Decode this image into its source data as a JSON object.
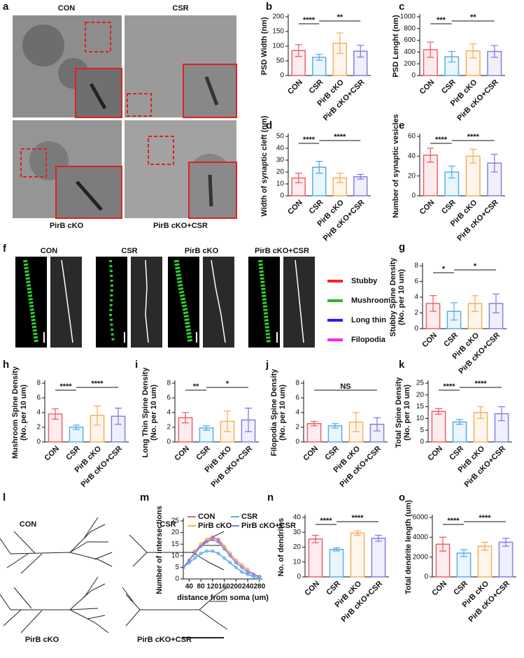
{
  "panel_a": {
    "letter": "a",
    "labels": [
      "CON",
      "CSR",
      "PirB cKO",
      "PirB cKO+CSR"
    ]
  },
  "panel_f": {
    "letter": "f",
    "labels": [
      "CON",
      "CSR",
      "PirB cKO",
      "PirB cKO+CSR"
    ],
    "legend": [
      {
        "name": "Stubby",
        "color": "#ff1f1f"
      },
      {
        "name": "Mushroom",
        "color": "#1fbf1f"
      },
      {
        "name": "Long thin",
        "color": "#1f1fff"
      },
      {
        "name": "Filopodia",
        "color": "#ff1fff"
      }
    ]
  },
  "panel_l": {
    "letter": "l",
    "labels": [
      "CON",
      "CSR",
      "PirB cKO",
      "PirB cKO+CSR"
    ]
  },
  "chart_data": [
    {
      "panel": "b",
      "type": "bar",
      "ylabel": "PSD Width (nm)",
      "categories": [
        "CON",
        "CSR",
        "PirB cKO",
        "PirB cKO+CSR"
      ],
      "colors": [
        "#f0606a",
        "#5aaee8",
        "#f5b060",
        "#8080e8"
      ],
      "values": [
        85,
        62,
        110,
        83
      ],
      "errors": [
        20,
        10,
        35,
        20
      ],
      "ylim": [
        0,
        200
      ],
      "yticks": [
        0,
        50,
        100,
        150,
        200
      ],
      "annotations": [
        {
          "text": "****",
          "from": "CON",
          "to": "CSR"
        },
        {
          "text": "**",
          "from": "CSR",
          "to": "PirB cKO+CSR"
        }
      ]
    },
    {
      "panel": "c",
      "type": "bar",
      "ylabel": "PSD Lenght (nm)",
      "categories": [
        "CON",
        "CSR",
        "PirB cKO",
        "PirB cKO+CSR"
      ],
      "colors": [
        "#f0606a",
        "#5aaee8",
        "#f5b060",
        "#8080e8"
      ],
      "values": [
        440,
        320,
        420,
        410
      ],
      "errors": [
        130,
        90,
        120,
        100
      ],
      "ylim": [
        0,
        1000
      ],
      "yticks": [
        0,
        200,
        400,
        600,
        800,
        1000
      ],
      "annotations": [
        {
          "text": "***",
          "from": "CON",
          "to": "CSR"
        },
        {
          "text": "**",
          "from": "CSR",
          "to": "PirB cKO+CSR"
        }
      ]
    },
    {
      "panel": "d",
      "type": "bar",
      "ylabel": "Width of synaptic cleft (nm)",
      "categories": [
        "CON",
        "CSR",
        "PirB cKO",
        "PirB cKO+CSR"
      ],
      "colors": [
        "#f0606a",
        "#5aaee8",
        "#f5b060",
        "#8080e8"
      ],
      "values": [
        15,
        24,
        15,
        16
      ],
      "errors": [
        4,
        5,
        4,
        2
      ],
      "ylim": [
        0,
        50
      ],
      "yticks": [
        0,
        10,
        20,
        30,
        40,
        50
      ],
      "annotations": [
        {
          "text": "****",
          "from": "CON",
          "to": "CSR"
        },
        {
          "text": "****",
          "from": "CSR",
          "to": "PirB cKO+CSR"
        }
      ]
    },
    {
      "panel": "e",
      "type": "bar",
      "ylabel": "Number of synaptic vesicles",
      "categories": [
        "CON",
        "CSR",
        "PirB cKO",
        "PirB cKO+CSR"
      ],
      "colors": [
        "#f0606a",
        "#5aaee8",
        "#f5b060",
        "#8080e8"
      ],
      "values": [
        41,
        24,
        40,
        33
      ],
      "errors": [
        7,
        6,
        7,
        9
      ],
      "ylim": [
        0,
        60
      ],
      "yticks": [
        0,
        20,
        40,
        60
      ],
      "annotations": [
        {
          "text": "****",
          "from": "CON",
          "to": "CSR"
        },
        {
          "text": "****",
          "from": "CSR",
          "to": "PirB cKO+CSR"
        }
      ]
    },
    {
      "panel": "g",
      "type": "bar",
      "ylabel": [
        "Stubby Spine Density",
        "(No. per 10 um)"
      ],
      "categories": [
        "CON",
        "CSR",
        "PirB cKO",
        "PirB cKO+CSR"
      ],
      "colors": [
        "#f0606a",
        "#5aaee8",
        "#f5b060",
        "#8080e8"
      ],
      "values": [
        3.2,
        2.2,
        3.2,
        3.2
      ],
      "errors": [
        1,
        1.1,
        1,
        1.2
      ],
      "ylim": [
        0,
        8
      ],
      "yticks": [
        0,
        2,
        4,
        6,
        8
      ],
      "annotations": [
        {
          "text": "*",
          "from": "CON",
          "to": "CSR"
        },
        {
          "text": "*",
          "from": "CSR",
          "to": "PirB cKO+CSR"
        }
      ]
    },
    {
      "panel": "h",
      "type": "bar",
      "ylabel": [
        "Mushroom Spine Density",
        "(No. per 10 um)"
      ],
      "categories": [
        "CON",
        "CSR",
        "PirB cKO",
        "PirB cKO+CSR"
      ],
      "colors": [
        "#f0606a",
        "#5aaee8",
        "#f5b060",
        "#8080e8"
      ],
      "values": [
        3.8,
        2.0,
        3.6,
        3.5
      ],
      "errors": [
        0.7,
        0.3,
        1.3,
        1.1
      ],
      "ylim": [
        0,
        8
      ],
      "yticks": [
        0,
        2,
        4,
        6,
        8
      ],
      "annotations": [
        {
          "text": "****",
          "from": "CON",
          "to": "CSR"
        },
        {
          "text": "****",
          "from": "CSR",
          "to": "PirB cKO+CSR"
        }
      ]
    },
    {
      "panel": "i",
      "type": "bar",
      "ylabel": [
        "Long Thin Spine Density",
        "(No. per 10 um)"
      ],
      "categories": [
        "CON",
        "CSR",
        "PirB cKO",
        "PirB cKO+CSR"
      ],
      "colors": [
        "#f0606a",
        "#5aaee8",
        "#f5b060",
        "#8080e8"
      ],
      "values": [
        3.3,
        1.9,
        2.8,
        3.0
      ],
      "errors": [
        0.7,
        0.3,
        1.4,
        1.6
      ],
      "ylim": [
        0,
        8
      ],
      "yticks": [
        0,
        2,
        4,
        6,
        8
      ],
      "annotations": [
        {
          "text": "**",
          "from": "CON",
          "to": "CSR"
        },
        {
          "text": "*",
          "from": "CSR",
          "to": "PirB cKO+CSR"
        }
      ]
    },
    {
      "panel": "j",
      "type": "bar",
      "ylabel": [
        "Filopodia Spine Density",
        "(No. per 10 um)"
      ],
      "categories": [
        "CON",
        "CSR",
        "PirB cKO",
        "PirB cKO+CSR"
      ],
      "colors": [
        "#f0606a",
        "#5aaee8",
        "#f5b060",
        "#8080e8"
      ],
      "values": [
        2.5,
        2.2,
        2.7,
        2.4
      ],
      "errors": [
        0.3,
        0.3,
        1.3,
        0.9
      ],
      "ylim": [
        0,
        8
      ],
      "yticks": [
        0,
        2,
        4,
        6,
        8
      ],
      "annotations": [
        {
          "text": "NS",
          "from": "CON",
          "to": "PirB cKO+CSR"
        }
      ]
    },
    {
      "panel": "k",
      "type": "bar",
      "ylabel": [
        "Total Spine Density",
        "(No. per 10 um)"
      ],
      "categories": [
        "CON",
        "CSR",
        "PirB cKO",
        "PirB cKO+CSR"
      ],
      "colors": [
        "#f0606a",
        "#5aaee8",
        "#f5b060",
        "#8080e8"
      ],
      "values": [
        13,
        8.5,
        12.5,
        12
      ],
      "errors": [
        1.2,
        1,
        2.5,
        3
      ],
      "ylim": [
        0,
        25
      ],
      "yticks": [
        0,
        5,
        10,
        15,
        20,
        25
      ],
      "annotations": [
        {
          "text": "****",
          "from": "CON",
          "to": "CSR"
        },
        {
          "text": "****",
          "from": "CSR",
          "to": "PirB cKO+CSR"
        }
      ]
    },
    {
      "panel": "m",
      "type": "line",
      "ylabel": "Number of intersections",
      "xlabel": "distance from soma (um)",
      "x": [
        20,
        40,
        60,
        80,
        100,
        120,
        140,
        160,
        180,
        200,
        220,
        240,
        260,
        280
      ],
      "series": [
        {
          "name": "CON",
          "color": "#f0606a",
          "values": [
            5,
            8,
            11,
            15,
            17,
            18,
            17,
            14,
            11,
            8,
            6,
            4,
            2,
            1
          ]
        },
        {
          "name": "CSR",
          "color": "#5aaee8",
          "values": [
            5,
            7,
            9,
            11,
            12,
            12,
            11,
            9,
            7,
            5,
            3,
            2,
            1,
            0.5
          ]
        },
        {
          "name": "PirB cKO",
          "color": "#f5b060",
          "values": [
            5,
            8,
            12,
            15,
            17,
            17,
            16,
            14,
            11,
            8,
            6,
            4,
            2,
            1
          ]
        },
        {
          "name": "PirB cKO+CSR",
          "color": "#8080e8",
          "values": [
            5,
            8,
            11,
            14,
            16,
            17,
            16,
            13,
            10,
            7,
            5,
            3,
            2,
            1
          ]
        }
      ],
      "xlim": [
        20,
        290
      ],
      "xticks": [
        40,
        80,
        120,
        160,
        200,
        240,
        280
      ],
      "ylim": [
        0,
        25
      ],
      "yticks": [
        0,
        5,
        10,
        15,
        20,
        25
      ]
    },
    {
      "panel": "n",
      "type": "bar",
      "ylabel": "No. of dendrites",
      "categories": [
        "CON",
        "CSR",
        "PirB cKO",
        "PirB cKO+CSR"
      ],
      "colors": [
        "#f0606a",
        "#5aaee8",
        "#f5b060",
        "#8080e8"
      ],
      "values": [
        25.5,
        18.5,
        29.5,
        26
      ],
      "errors": [
        2.5,
        1,
        1.5,
        2
      ],
      "ylim": [
        0,
        40
      ],
      "yticks": [
        0,
        10,
        20,
        30,
        40
      ],
      "annotations": [
        {
          "text": "****",
          "from": "CON",
          "to": "CSR"
        },
        {
          "text": "****",
          "from": "CSR",
          "to": "PirB cKO+CSR"
        }
      ]
    },
    {
      "panel": "o",
      "type": "bar",
      "ylabel": "Total dendrite length (um)",
      "categories": [
        "CON",
        "CSR",
        "PirB cKO",
        "PirB cKO+CSR"
      ],
      "colors": [
        "#f0606a",
        "#5aaee8",
        "#f5b060",
        "#8080e8"
      ],
      "values": [
        3300,
        2400,
        3100,
        3500
      ],
      "errors": [
        700,
        350,
        400,
        400
      ],
      "ylim": [
        0,
        6000
      ],
      "yticks": [
        0,
        2000,
        4000,
        6000
      ],
      "annotations": [
        {
          "text": "****",
          "from": "CON",
          "to": "CSR"
        },
        {
          "text": "****",
          "from": "CSR",
          "to": "PirB cKO+CSR"
        }
      ]
    }
  ]
}
